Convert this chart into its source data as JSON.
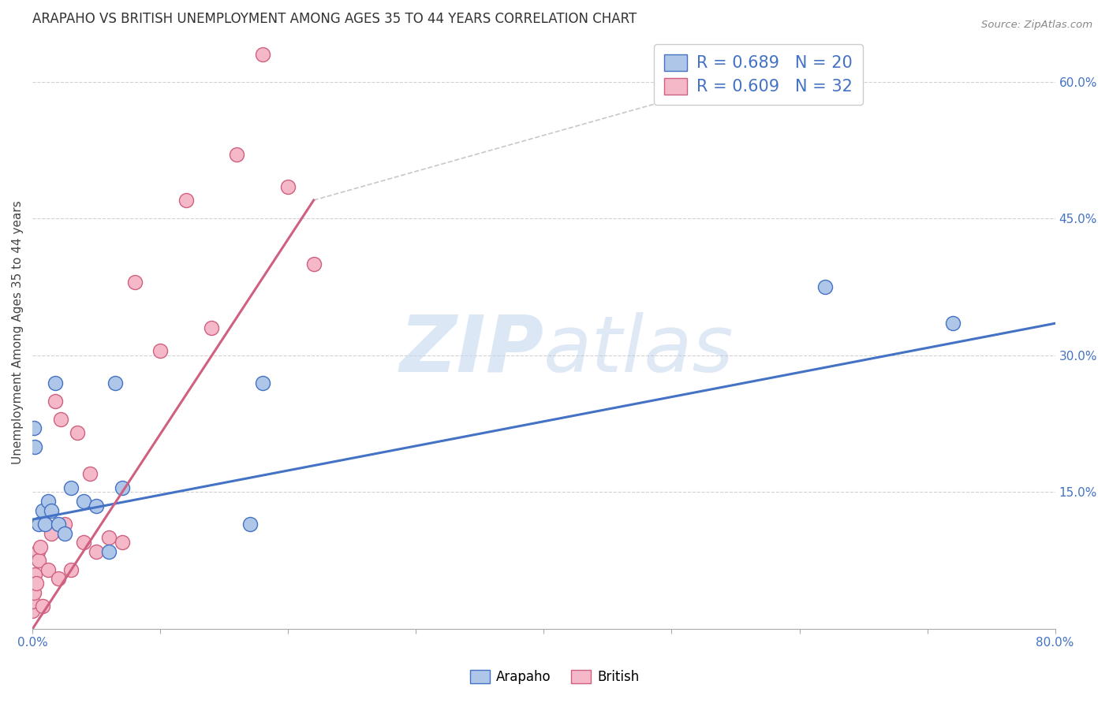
{
  "title": "ARAPAHO VS BRITISH UNEMPLOYMENT AMONG AGES 35 TO 44 YEARS CORRELATION CHART",
  "source": "Source: ZipAtlas.com",
  "ylabel": "Unemployment Among Ages 35 to 44 years",
  "xlim": [
    0.0,
    0.8
  ],
  "ylim": [
    0.0,
    0.65
  ],
  "xticks": [
    0.0,
    0.1,
    0.2,
    0.3,
    0.4,
    0.5,
    0.6,
    0.7,
    0.8
  ],
  "yticks": [
    0.0,
    0.15,
    0.3,
    0.45,
    0.6
  ],
  "background_color": "#ffffff",
  "watermark_zip": "ZIP",
  "watermark_atlas": "atlas",
  "arapaho_color": "#aec6e8",
  "arapaho_edge_color": "#4472c4",
  "british_color": "#f4b8c8",
  "british_edge_color": "#d06080",
  "arapaho_line_color": "#4472c4",
  "british_line_color": "#d06080",
  "dashed_line_color": "#c8c8c8",
  "legend_text_color": "#4472c4",
  "tick_color": "#4472c4",
  "R_arapaho": 0.689,
  "N_arapaho": 20,
  "R_british": 0.609,
  "N_british": 32,
  "arapaho_x": [
    0.001,
    0.002,
    0.005,
    0.008,
    0.01,
    0.012,
    0.015,
    0.018,
    0.02,
    0.025,
    0.03,
    0.04,
    0.05,
    0.06,
    0.065,
    0.07,
    0.17,
    0.18,
    0.62,
    0.72
  ],
  "arapaho_y": [
    0.22,
    0.2,
    0.115,
    0.13,
    0.115,
    0.14,
    0.13,
    0.27,
    0.115,
    0.105,
    0.155,
    0.14,
    0.135,
    0.085,
    0.27,
    0.155,
    0.115,
    0.27,
    0.375,
    0.335
  ],
  "british_x": [
    0.0,
    0.0,
    0.0,
    0.001,
    0.002,
    0.003,
    0.004,
    0.005,
    0.006,
    0.008,
    0.01,
    0.012,
    0.015,
    0.018,
    0.02,
    0.022,
    0.025,
    0.03,
    0.035,
    0.04,
    0.045,
    0.05,
    0.06,
    0.07,
    0.08,
    0.1,
    0.12,
    0.14,
    0.16,
    0.18,
    0.2,
    0.22
  ],
  "british_y": [
    0.02,
    0.03,
    0.045,
    0.04,
    0.06,
    0.05,
    0.085,
    0.075,
    0.09,
    0.025,
    0.115,
    0.065,
    0.105,
    0.25,
    0.055,
    0.23,
    0.115,
    0.065,
    0.215,
    0.095,
    0.17,
    0.085,
    0.1,
    0.095,
    0.38,
    0.305,
    0.47,
    0.33,
    0.52,
    0.63,
    0.485,
    0.4
  ],
  "arapaho_trend": [
    0.0,
    0.8,
    0.12,
    0.335
  ],
  "british_trend": [
    0.0,
    0.22,
    0.0,
    0.47
  ],
  "dashed_trend": [
    0.22,
    0.65,
    0.47,
    0.64
  ],
  "title_fontsize": 12,
  "axis_label_fontsize": 11,
  "tick_fontsize": 11,
  "legend_fontsize": 15,
  "marker_size": 13
}
